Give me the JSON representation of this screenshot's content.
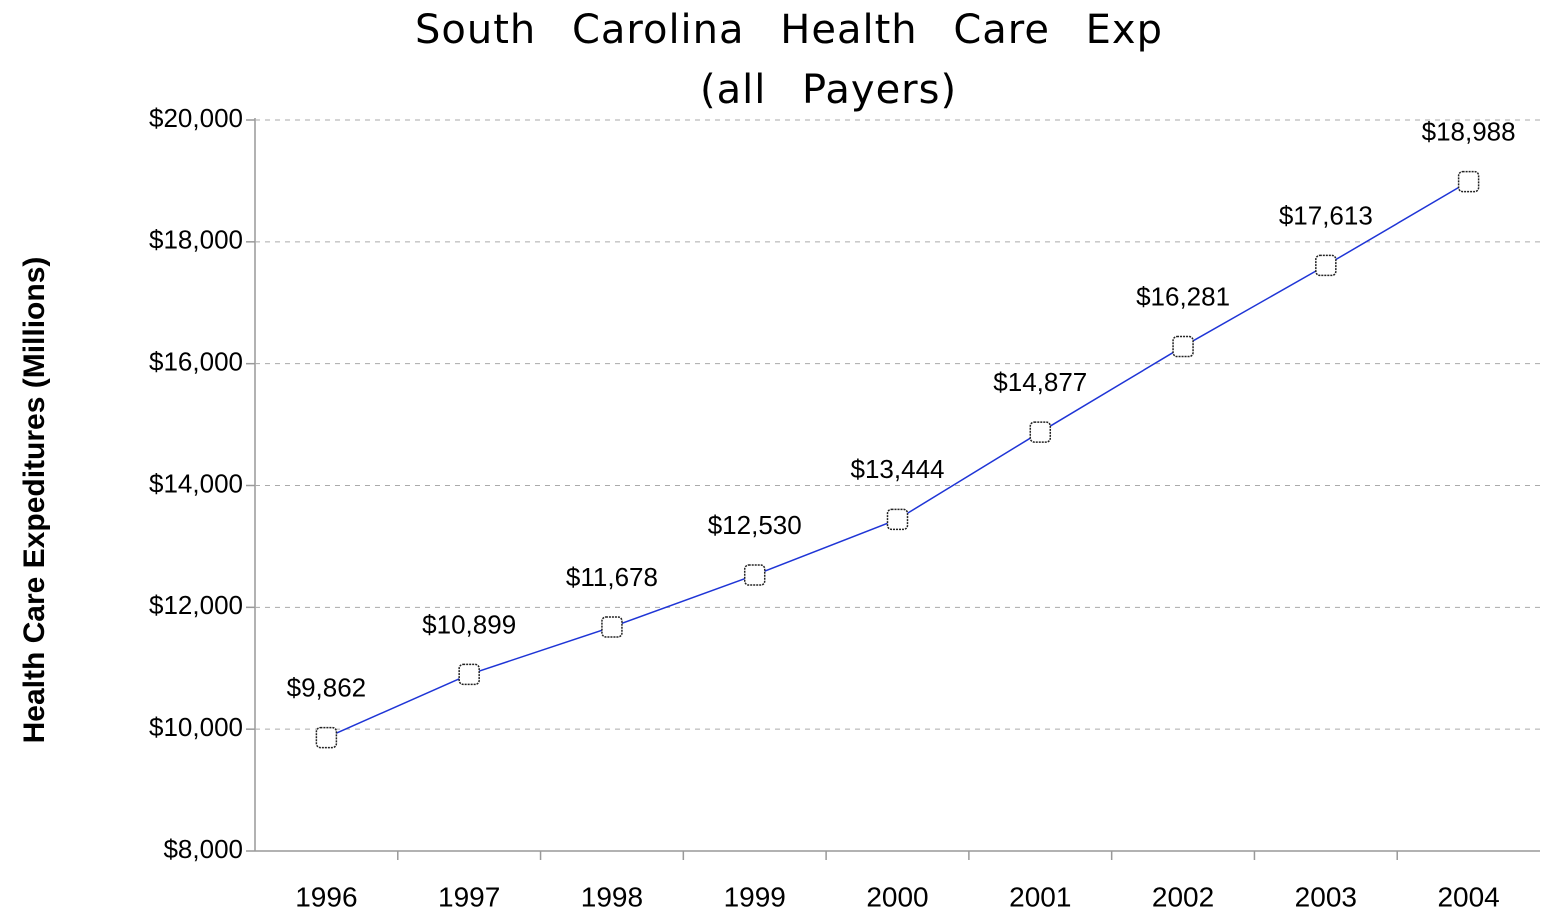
{
  "chart_data": {
    "type": "line",
    "title": "South Carolina Health Care Exp",
    "subtitle": "(all Payers)",
    "y_label": "Health Care Expeditures (Millions)",
    "categories": [
      "1996",
      "1997",
      "1998",
      "1999",
      "2000",
      "2001",
      "2002",
      "2003",
      "2004"
    ],
    "values": [
      9862,
      10899,
      11678,
      12530,
      13444,
      14877,
      16281,
      17613,
      18988
    ],
    "value_labels": [
      "$9,862",
      "$10,899",
      "$11,678",
      "$12,530",
      "$13,444",
      "$14,877",
      "$16,281",
      "$17,613",
      "$18,988"
    ],
    "color": "#1f35d6",
    "ylim": [
      8000,
      20000
    ],
    "yticks": [
      {
        "value": 8000,
        "label": "$8,000"
      },
      {
        "value": 10000,
        "label": "$10,000"
      },
      {
        "value": 12000,
        "label": "$12,000"
      },
      {
        "value": 14000,
        "label": "$14,000"
      },
      {
        "value": 16000,
        "label": "$16,000"
      },
      {
        "value": 18000,
        "label": "$18,000"
      },
      {
        "value": 20000,
        "label": "$20,000"
      }
    ],
    "grid": true
  }
}
